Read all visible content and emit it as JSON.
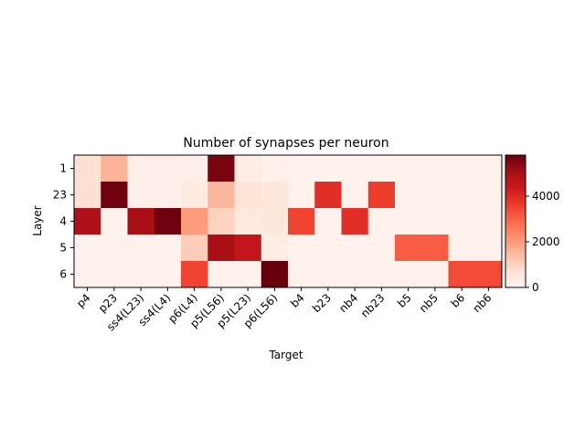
{
  "chart_data": {
    "type": "heatmap",
    "title": "Number of synapses per neuron",
    "xlabel": "Target",
    "ylabel": "Layer",
    "columns": [
      "p4",
      "p23",
      "ss4(L23)",
      "ss4(L4)",
      "p6(L4)",
      "p5(L56)",
      "p5(L23)",
      "p6(L56)",
      "b4",
      "b23",
      "nb4",
      "nb23",
      "b5",
      "nb5",
      "b6",
      "nb6"
    ],
    "rows": [
      "1",
      "23",
      "4",
      "5",
      "6"
    ],
    "values": [
      [
        700,
        1600,
        200,
        200,
        200,
        5600,
        300,
        150,
        100,
        100,
        100,
        100,
        100,
        100,
        100,
        100
      ],
      [
        700,
        5700,
        200,
        200,
        350,
        1500,
        600,
        500,
        100,
        3900,
        100,
        3600,
        100,
        100,
        100,
        100
      ],
      [
        4900,
        100,
        5000,
        5700,
        2000,
        1000,
        400,
        500,
        3500,
        100,
        3900,
        100,
        100,
        100,
        100,
        100
      ],
      [
        100,
        100,
        100,
        100,
        1100,
        5000,
        4500,
        300,
        100,
        100,
        100,
        100,
        3100,
        3100,
        100,
        100
      ],
      [
        100,
        100,
        100,
        100,
        3500,
        100,
        100,
        5800,
        100,
        100,
        100,
        100,
        100,
        100,
        3400,
        3400
      ]
    ],
    "colormap": "Reds",
    "colorbar": {
      "min": 0,
      "max": 5800,
      "ticks": [
        0,
        2000,
        4000
      ]
    }
  }
}
